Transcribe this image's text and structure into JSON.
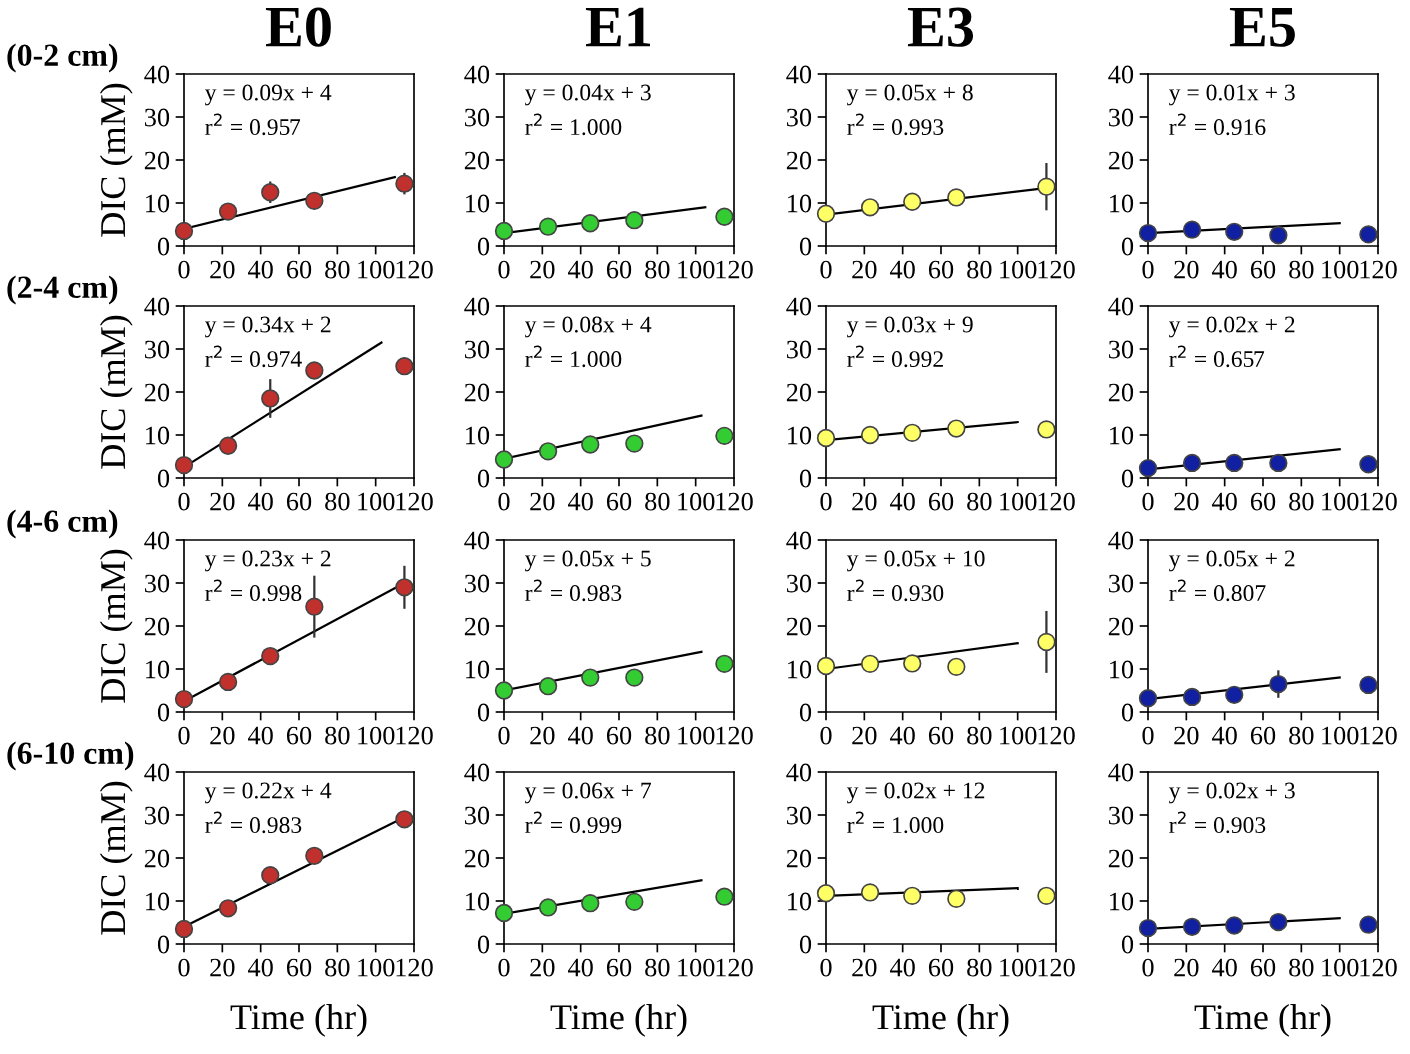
{
  "chart_data": [
    {
      "type": "scatter",
      "title": "E0",
      "ylabel": "DIC (mM)",
      "annotations": [
        "(0-2 cm)",
        "y = 0.09x + 4",
        "r$^{2}$ = 0.957"
      ],
      "x": [
        0,
        23,
        45,
        68,
        115
      ],
      "xlim": [
        0,
        120
      ],
      "ylim": [
        0,
        40
      ],
      "xticks": [
        0,
        20,
        40,
        60,
        80,
        100,
        120
      ],
      "yticks": [
        0,
        10,
        20,
        30,
        40
      ],
      "marker": "circle",
      "series": [
        {
          "type": "scatter",
          "color": "#c0302c",
          "values": [
            3.5,
            8,
            12.5,
            10.5,
            14.5
          ],
          "errors": [
            null,
            1,
            2.5,
            1.5,
            2.5
          ]
        },
        {
          "type": "line",
          "color": "#000000",
          "marker": "none",
          "x": [
            0,
            110
          ],
          "values": [
            4,
            16
          ]
        }
      ]
    },
    {
      "type": "scatter",
      "title": "E1",
      "annotations": [
        "y = 0.04x + 3",
        "r$^{2}$ = 1.000"
      ],
      "x": [
        0,
        23,
        45,
        68,
        115
      ],
      "xlim": [
        0,
        120
      ],
      "ylim": [
        0,
        40
      ],
      "xticks": [
        0,
        20,
        40,
        60,
        80,
        100,
        120
      ],
      "yticks": [
        0,
        10,
        20,
        30,
        40
      ],
      "marker": "circle",
      "series": [
        {
          "type": "scatter",
          "color": "#33cc33",
          "values": [
            3.5,
            4.5,
            5.3,
            6,
            6.8
          ]
        },
        {
          "type": "line",
          "color": "#000000",
          "marker": "none",
          "x": [
            0,
            105
          ],
          "values": [
            3,
            9
          ]
        }
      ]
    },
    {
      "type": "scatter",
      "title": "E3",
      "annotations": [
        "y = 0.05x + 8",
        "r$^{2}$ = 0.993"
      ],
      "x": [
        0,
        23,
        45,
        68,
        115
      ],
      "xlim": [
        0,
        120
      ],
      "ylim": [
        0,
        40
      ],
      "xticks": [
        0,
        20,
        40,
        60,
        80,
        100,
        120
      ],
      "yticks": [
        0,
        10,
        20,
        30,
        40
      ],
      "marker": "circle",
      "series": [
        {
          "type": "scatter",
          "color": "#ffff66",
          "values": [
            7.5,
            9,
            10.3,
            11.3,
            13.8
          ],
          "errors": [
            null,
            null,
            null,
            1.5,
            5.5
          ]
        },
        {
          "type": "line",
          "color": "#000000",
          "marker": "none",
          "x": [
            0,
            115
          ],
          "values": [
            7.3,
            13.5
          ]
        }
      ]
    },
    {
      "type": "scatter",
      "title": "E5",
      "annotations": [
        "y = 0.01x + 3",
        "r$^{2}$ = 0.916"
      ],
      "x": [
        0,
        23,
        45,
        68,
        115
      ],
      "xlim": [
        0,
        120
      ],
      "ylim": [
        0,
        40
      ],
      "xticks": [
        0,
        20,
        40,
        60,
        80,
        100,
        120
      ],
      "yticks": [
        0,
        10,
        20,
        30,
        40
      ],
      "marker": "circle",
      "series": [
        {
          "type": "scatter",
          "color": "#1020a0",
          "values": [
            3,
            3.8,
            3.3,
            2.5,
            2.7
          ]
        },
        {
          "type": "line",
          "color": "#000000",
          "marker": "none",
          "x": [
            0,
            100
          ],
          "values": [
            3,
            5.3
          ]
        }
      ]
    },
    {
      "type": "scatter",
      "ylabel": "DIC (mM)",
      "annotations": [
        "(2-4 cm)",
        "y = 0.34x + 2",
        "r$^{2}$ = 0.974"
      ],
      "x": [
        0,
        23,
        45,
        68,
        115
      ],
      "xlim": [
        0,
        120
      ],
      "ylim": [
        0,
        40
      ],
      "xticks": [
        0,
        20,
        40,
        60,
        80,
        100,
        120
      ],
      "yticks": [
        0,
        10,
        20,
        30,
        40
      ],
      "marker": "circle",
      "series": [
        {
          "type": "scatter",
          "color": "#c0302c",
          "values": [
            3,
            7.5,
            18.5,
            25,
            26
          ],
          "errors": [
            null,
            null,
            4.5,
            null,
            null
          ]
        },
        {
          "type": "line",
          "color": "#000000",
          "marker": "none",
          "x": [
            0,
            103
          ],
          "values": [
            2.5,
            31.5
          ]
        }
      ]
    },
    {
      "type": "scatter",
      "annotations": [
        "y = 0.08x + 4",
        "r$^{2}$ = 1.000"
      ],
      "x": [
        0,
        23,
        45,
        68,
        115
      ],
      "xlim": [
        0,
        120
      ],
      "ylim": [
        0,
        40
      ],
      "xticks": [
        0,
        20,
        40,
        60,
        80,
        100,
        120
      ],
      "yticks": [
        0,
        10,
        20,
        30,
        40
      ],
      "marker": "circle",
      "series": [
        {
          "type": "scatter",
          "color": "#33cc33",
          "values": [
            4.3,
            6.2,
            7.8,
            8,
            9.8
          ],
          "errors": [
            null,
            null,
            null,
            null,
            1
          ]
        },
        {
          "type": "line",
          "color": "#000000",
          "marker": "none",
          "x": [
            0,
            103
          ],
          "values": [
            4.5,
            14.5
          ]
        }
      ]
    },
    {
      "type": "scatter",
      "annotations": [
        "y = 0.03x + 9",
        "r$^{2}$ = 0.992"
      ],
      "x": [
        0,
        23,
        45,
        68,
        115
      ],
      "xlim": [
        0,
        120
      ],
      "ylim": [
        0,
        40
      ],
      "xticks": [
        0,
        20,
        40,
        60,
        80,
        100,
        120
      ],
      "yticks": [
        0,
        10,
        20,
        30,
        40
      ],
      "marker": "circle",
      "series": [
        {
          "type": "scatter",
          "color": "#ffff66",
          "values": [
            9.3,
            10,
            10.5,
            11.5,
            11.3
          ]
        },
        {
          "type": "line",
          "color": "#000000",
          "marker": "none",
          "x": [
            0,
            100
          ],
          "values": [
            8.8,
            13
          ]
        }
      ]
    },
    {
      "type": "scatter",
      "annotations": [
        "y = 0.02x + 2",
        "r$^{2}$ = 0.657"
      ],
      "x": [
        0,
        23,
        45,
        68,
        115
      ],
      "xlim": [
        0,
        120
      ],
      "ylim": [
        0,
        40
      ],
      "xticks": [
        0,
        20,
        40,
        60,
        80,
        100,
        120
      ],
      "yticks": [
        0,
        10,
        20,
        30,
        40
      ],
      "marker": "circle",
      "series": [
        {
          "type": "scatter",
          "color": "#1020a0",
          "values": [
            2.3,
            3.5,
            3.5,
            3.5,
            3.2
          ]
        },
        {
          "type": "line",
          "color": "#000000",
          "marker": "none",
          "x": [
            0,
            100
          ],
          "values": [
            2,
            6.7
          ]
        }
      ]
    },
    {
      "type": "scatter",
      "ylabel": "DIC (mM)",
      "annotations": [
        "(4-6 cm)",
        "y = 0.23x + 2",
        "r$^{2}$ = 0.998"
      ],
      "x": [
        0,
        23,
        45,
        68,
        115
      ],
      "xlim": [
        0,
        120
      ],
      "ylim": [
        0,
        40
      ],
      "xticks": [
        0,
        20,
        40,
        60,
        80,
        100,
        120
      ],
      "yticks": [
        0,
        10,
        20,
        30,
        40
      ],
      "marker": "circle",
      "series": [
        {
          "type": "scatter",
          "color": "#c0302c",
          "values": [
            3,
            7,
            13,
            24.5,
            29
          ],
          "errors": [
            null,
            null,
            1.5,
            7.2,
            5
          ]
        },
        {
          "type": "line",
          "color": "#000000",
          "marker": "none",
          "x": [
            0,
            115
          ],
          "values": [
            2.5,
            30
          ]
        }
      ]
    },
    {
      "type": "scatter",
      "annotations": [
        "y = 0.05x + 5",
        "r$^{2}$ = 0.983"
      ],
      "x": [
        0,
        23,
        45,
        68,
        115
      ],
      "xlim": [
        0,
        120
      ],
      "ylim": [
        0,
        40
      ],
      "xticks": [
        0,
        20,
        40,
        60,
        80,
        100,
        120
      ],
      "yticks": [
        0,
        10,
        20,
        30,
        40
      ],
      "marker": "circle",
      "series": [
        {
          "type": "scatter",
          "color": "#33cc33",
          "values": [
            5,
            6,
            8,
            8,
            11.2
          ]
        },
        {
          "type": "line",
          "color": "#000000",
          "marker": "none",
          "x": [
            0,
            103
          ],
          "values": [
            5,
            14
          ]
        }
      ]
    },
    {
      "type": "scatter",
      "annotations": [
        "y = 0.05x + 10",
        "r$^{2}$ = 0.930"
      ],
      "x": [
        0,
        23,
        45,
        68,
        115
      ],
      "xlim": [
        0,
        120
      ],
      "ylim": [
        0,
        40
      ],
      "xticks": [
        0,
        20,
        40,
        60,
        80,
        100,
        120
      ],
      "yticks": [
        0,
        10,
        20,
        30,
        40
      ],
      "marker": "circle",
      "series": [
        {
          "type": "scatter",
          "color": "#ffff66",
          "values": [
            10.7,
            11.2,
            11.3,
            10.5,
            16.3
          ],
          "errors": [
            null,
            null,
            null,
            null,
            7.2
          ]
        },
        {
          "type": "line",
          "color": "#000000",
          "marker": "none",
          "x": [
            0,
            100
          ],
          "values": [
            10,
            16
          ]
        }
      ]
    },
    {
      "type": "scatter",
      "annotations": [
        "y = 0.05x + 2",
        "r$^{2}$ = 0.807"
      ],
      "x": [
        0,
        23,
        45,
        68,
        115
      ],
      "xlim": [
        0,
        120
      ],
      "ylim": [
        0,
        40
      ],
      "xticks": [
        0,
        20,
        40,
        60,
        80,
        100,
        120
      ],
      "yticks": [
        0,
        10,
        20,
        30,
        40
      ],
      "marker": "circle",
      "series": [
        {
          "type": "scatter",
          "color": "#1020a0",
          "values": [
            3.2,
            3.5,
            4,
            6.5,
            6.3
          ],
          "errors": [
            null,
            null,
            null,
            3.2,
            2
          ]
        },
        {
          "type": "line",
          "color": "#000000",
          "marker": "none",
          "x": [
            0,
            100
          ],
          "values": [
            3,
            8
          ]
        }
      ]
    },
    {
      "type": "scatter",
      "ylabel": "DIC (mM)",
      "xlabel": "Time (hr)",
      "annotations": [
        "(6-10 cm)",
        "y = 0.22x + 4",
        "r$^{2}$ = 0.983"
      ],
      "x": [
        0,
        23,
        45,
        68,
        115
      ],
      "xlim": [
        0,
        120
      ],
      "ylim": [
        0,
        40
      ],
      "xticks": [
        0,
        20,
        40,
        60,
        80,
        100,
        120
      ],
      "yticks": [
        0,
        10,
        20,
        30,
        40
      ],
      "marker": "circle",
      "series": [
        {
          "type": "scatter",
          "color": "#c0302c",
          "values": [
            3.5,
            8.3,
            16,
            20.5,
            29
          ]
        },
        {
          "type": "line",
          "color": "#000000",
          "marker": "none",
          "x": [
            0,
            115
          ],
          "values": [
            4,
            29.5
          ]
        }
      ]
    },
    {
      "type": "scatter",
      "xlabel": "Time (hr)",
      "annotations": [
        "y = 0.06x + 7",
        "r$^{2}$ = 0.999"
      ],
      "x": [
        0,
        23,
        45,
        68,
        115
      ],
      "xlim": [
        0,
        120
      ],
      "ylim": [
        0,
        40
      ],
      "xticks": [
        0,
        20,
        40,
        60,
        80,
        100,
        120
      ],
      "yticks": [
        0,
        10,
        20,
        30,
        40
      ],
      "marker": "circle",
      "series": [
        {
          "type": "scatter",
          "color": "#33cc33",
          "values": [
            7.2,
            8.5,
            9.5,
            9.8,
            11
          ],
          "errors": [
            null,
            null,
            2,
            null,
            null
          ]
        },
        {
          "type": "line",
          "color": "#000000",
          "marker": "none",
          "x": [
            0,
            103
          ],
          "values": [
            7,
            14.8
          ]
        }
      ]
    },
    {
      "type": "scatter",
      "xlabel": "Time (hr)",
      "annotations": [
        "y = 0.02x + 12",
        "r$^{2}$ = 1.000"
      ],
      "x": [
        0,
        23,
        45,
        68,
        115
      ],
      "xlim": [
        0,
        120
      ],
      "ylim": [
        0,
        40
      ],
      "xticks": [
        0,
        20,
        40,
        60,
        80,
        100,
        120
      ],
      "yticks": [
        0,
        10,
        20,
        30,
        40
      ],
      "marker": "circle",
      "series": [
        {
          "type": "scatter",
          "color": "#ffff66",
          "values": [
            11.8,
            12,
            11.2,
            10.5,
            11.2
          ]
        },
        {
          "type": "line",
          "color": "#000000",
          "marker": "none",
          "x": [
            0,
            100
          ],
          "values": [
            11.2,
            13
          ]
        }
      ]
    },
    {
      "type": "scatter",
      "xlabel": "Time (hr)",
      "annotations": [
        "y = 0.02x + 3",
        "r$^{2}$ = 0.903"
      ],
      "x": [
        0,
        23,
        45,
        68,
        115
      ],
      "xlim": [
        0,
        120
      ],
      "ylim": [
        0,
        40
      ],
      "xticks": [
        0,
        20,
        40,
        60,
        80,
        100,
        120
      ],
      "yticks": [
        0,
        10,
        20,
        30,
        40
      ],
      "marker": "circle",
      "series": [
        {
          "type": "scatter",
          "color": "#1020a0",
          "values": [
            3.7,
            4,
            4.3,
            5.1,
            4.5
          ]
        },
        {
          "type": "line",
          "color": "#000000",
          "marker": "none",
          "x": [
            0,
            100
          ],
          "values": [
            3.5,
            6
          ]
        }
      ]
    }
  ]
}
